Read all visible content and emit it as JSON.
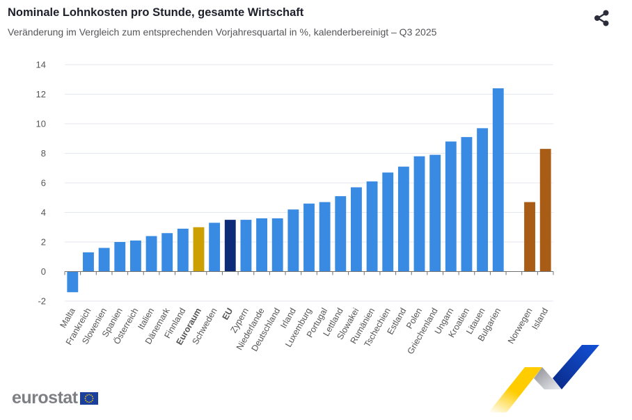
{
  "header": {
    "title": "Nominale Lohnkosten pro Stunde, gesamte Wirtschaft",
    "subtitle": "Veränderung im Vergleich zum entsprechenden Vorjahresquartal in %, kalenderbereinigt – Q3 2025",
    "share_icon": "share-icon"
  },
  "footer": {
    "logo_text": "eurostat",
    "flag_icon": "eu-flag-icon"
  },
  "colors": {
    "country": "#388ae2",
    "euroraum": "#cca000",
    "eu": "#0c2c7a",
    "non_eu": "#a95c15",
    "gridline": "#e3e7ee",
    "axis": "#707070"
  },
  "chart_data": {
    "type": "bar",
    "title": "Nominale Lohnkosten pro Stunde, gesamte Wirtschaft",
    "subtitle": "Veränderung im Vergleich zum entsprechenden Vorjahresquartal in %, kalenderbereinigt – Q3 2025",
    "xlabel": "",
    "ylabel": "",
    "ylim": [
      -2,
      14
    ],
    "yticks": [
      -2,
      0,
      2,
      4,
      6,
      8,
      10,
      12,
      14
    ],
    "grid": true,
    "legend": "none",
    "categories": [
      "Malta",
      "Frankreich",
      "Slowenien",
      "Spanien",
      "Österreich",
      "Italien",
      "Dänemark",
      "Finnland",
      "Euroraum",
      "Schweden",
      "EU",
      "Zypern",
      "Niederlande",
      "Deutschland",
      "Irland",
      "Luxemburg",
      "Portugal",
      "Lettland",
      "Slowakei",
      "Rumänien",
      "Tschechien",
      "Estland",
      "Polen",
      "Griechenland",
      "Ungarn",
      "Kroatien",
      "Litauen",
      "Bulgarien",
      "",
      "Norwegen",
      "Island"
    ],
    "values": [
      -1.4,
      1.3,
      1.6,
      2.0,
      2.1,
      2.4,
      2.6,
      2.9,
      3.0,
      3.3,
      3.5,
      3.5,
      3.6,
      3.6,
      4.2,
      4.6,
      4.7,
      5.1,
      5.7,
      6.1,
      6.7,
      7.1,
      7.8,
      7.9,
      8.8,
      9.1,
      9.7,
      12.4,
      null,
      4.7,
      8.3
    ],
    "groups": [
      "country",
      "country",
      "country",
      "country",
      "country",
      "country",
      "country",
      "country",
      "euroraum",
      "country",
      "eu",
      "country",
      "country",
      "country",
      "country",
      "country",
      "country",
      "country",
      "country",
      "country",
      "country",
      "country",
      "country",
      "country",
      "country",
      "country",
      "country",
      "country",
      "gap",
      "non_eu",
      "non_eu"
    ],
    "bold_labels": [
      "Euroraum",
      "EU"
    ]
  }
}
